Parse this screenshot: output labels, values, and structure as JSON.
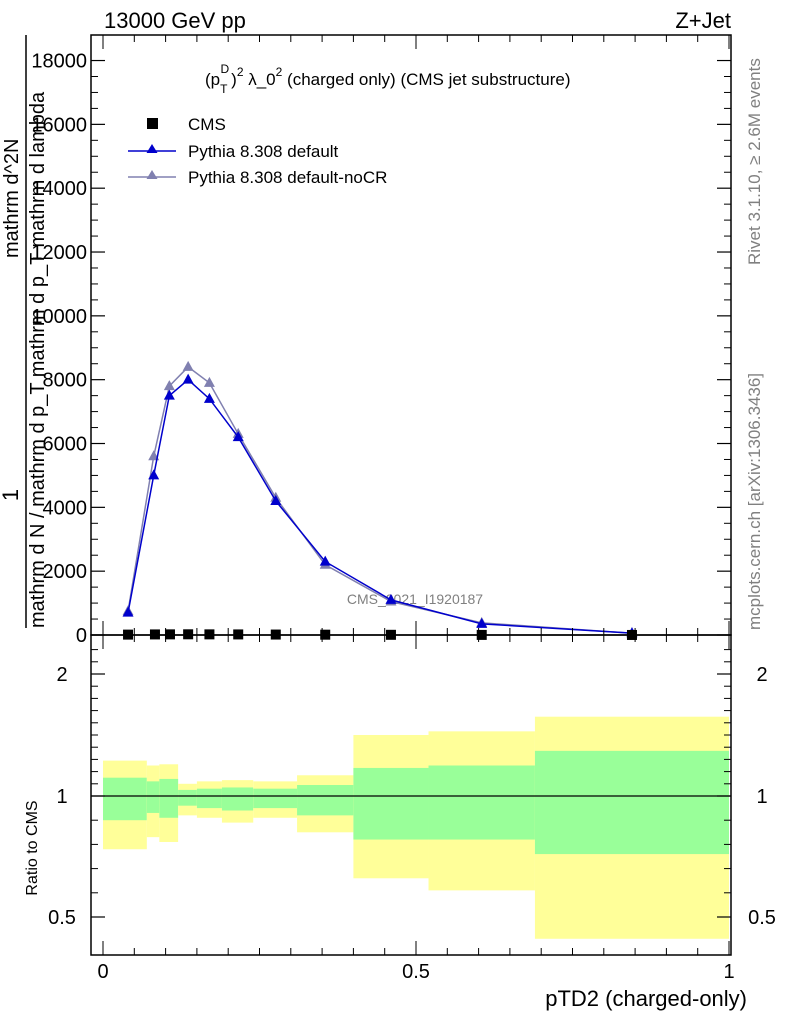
{
  "header": {
    "left": "13000 GeV pp",
    "right": "Z+Jet"
  },
  "side": {
    "rivet": "Rivet 3.1.10, ≥ 2.6M events",
    "mcplots": "mcplots.cern.ch [arXiv:1306.3436]"
  },
  "chart_data": {
    "type": "line",
    "title": "(p_T^D)^2 λ_0^2 (charged only) (CMS jet substructure)",
    "title_parts": {
      "a": "(p",
      "sub": "T",
      "sup1": "D",
      "b": ")",
      "sup2": "2",
      "c": " λ_0",
      "sup3": "2",
      "d": " (charged only) (CMS jet substructure)"
    },
    "watermark": "CMS_2021_I1920187",
    "xlabel": "pTD2 (charged-only)",
    "ylabel_main": {
      "one": "1",
      "den": "mathrm d N / mathrm d p_T mathrm d p_T mathrm d lambda",
      "num": "mathrm d^2N",
      "sub": "T"
    },
    "ylabel_ratio": "Ratio to CMS",
    "xlim": [
      0,
      1
    ],
    "ylim": [
      0,
      18800
    ],
    "yticks": [
      0,
      2000,
      4000,
      6000,
      8000,
      10000,
      12000,
      14000,
      16000,
      18000
    ],
    "yticklabels": [
      "0",
      "2000",
      "4000",
      "6000",
      "8000",
      "10000",
      "12000",
      "14000",
      "16000",
      "18000"
    ],
    "xticks": [
      0,
      0.5,
      1
    ],
    "xticklabels": [
      "0",
      "0.5",
      "1"
    ],
    "ratio_ylim": [
      0.4,
      2.3
    ],
    "ratio_yticks": [
      0.5,
      1,
      2
    ],
    "ratio_yticklabels": [
      "0.5",
      "1",
      "2"
    ],
    "legend_position": "top-left",
    "legend": [
      "CMS",
      "Pythia 8.308 default",
      "Pythia 8.308 default-noCR"
    ],
    "data_x": [
      0.04,
      0.083,
      0.107,
      0.136,
      0.17,
      0.216,
      0.276,
      0.355,
      0.46,
      0.605,
      0.845
    ],
    "data_y": [
      12,
      18,
      20,
      22,
      20,
      18,
      14,
      10,
      6,
      3,
      1
    ],
    "series": [
      {
        "name": "Pythia 8.308 default",
        "color": "#0000cc",
        "marker": "triangle",
        "x": [
          0.04,
          0.081,
          0.106,
          0.136,
          0.17,
          0.216,
          0.276,
          0.355,
          0.46,
          0.605,
          0.845
        ],
        "y": [
          700,
          5000,
          7500,
          8000,
          7400,
          6200,
          4200,
          2300,
          1100,
          350,
          60
        ]
      },
      {
        "name": "Pythia 8.308 default-noCR",
        "color": "#8080b0",
        "marker": "triangle",
        "x": [
          0.04,
          0.081,
          0.106,
          0.136,
          0.17,
          0.216,
          0.276,
          0.355,
          0.46,
          0.605,
          0.845
        ],
        "y": [
          750,
          5600,
          7800,
          8400,
          7900,
          6300,
          4300,
          2200,
          1050,
          380,
          55
        ]
      }
    ],
    "uncertainty_bands": [
      {
        "x0": 0.0,
        "x1": 0.07,
        "inner": [
          0.9,
          1.15
        ],
        "outer": [
          0.78,
          1.29
        ]
      },
      {
        "x0": 0.07,
        "x1": 0.09,
        "inner": [
          0.93,
          1.12
        ],
        "outer": [
          0.83,
          1.25
        ]
      },
      {
        "x0": 0.09,
        "x1": 0.12,
        "inner": [
          0.91,
          1.14
        ],
        "outer": [
          0.81,
          1.26
        ]
      },
      {
        "x0": 0.12,
        "x1": 0.15,
        "inner": [
          0.96,
          1.05
        ],
        "outer": [
          0.92,
          1.1
        ]
      },
      {
        "x0": 0.15,
        "x1": 0.19,
        "inner": [
          0.95,
          1.06
        ],
        "outer": [
          0.91,
          1.12
        ]
      },
      {
        "x0": 0.19,
        "x1": 0.24,
        "inner": [
          0.94,
          1.07
        ],
        "outer": [
          0.89,
          1.13
        ]
      },
      {
        "x0": 0.24,
        "x1": 0.31,
        "inner": [
          0.95,
          1.06
        ],
        "outer": [
          0.91,
          1.12
        ]
      },
      {
        "x0": 0.31,
        "x1": 0.4,
        "inner": [
          0.92,
          1.09
        ],
        "outer": [
          0.85,
          1.17
        ]
      },
      {
        "x0": 0.4,
        "x1": 0.52,
        "inner": [
          0.82,
          1.23
        ],
        "outer": [
          0.66,
          1.5
        ]
      },
      {
        "x0": 0.52,
        "x1": 0.69,
        "inner": [
          0.82,
          1.25
        ],
        "outer": [
          0.61,
          1.53
        ]
      },
      {
        "x0": 0.69,
        "x1": 1.0,
        "inner": [
          0.76,
          1.37
        ],
        "outer": [
          0.41,
          1.65
        ]
      }
    ],
    "grid": false
  }
}
